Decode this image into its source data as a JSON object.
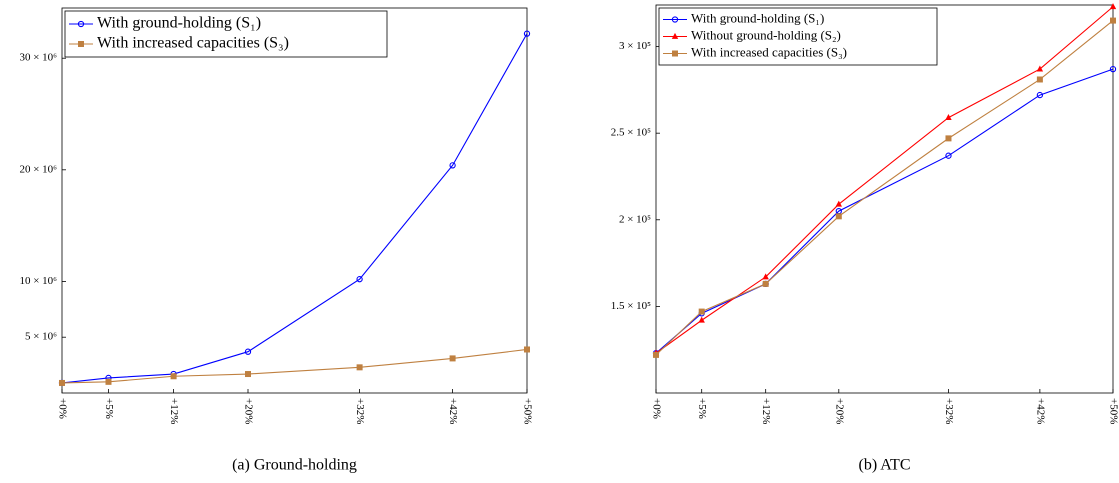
{
  "chart_data": [
    {
      "type": "line",
      "caption": "(a)  Ground-holding",
      "x": [
        0,
        5,
        12,
        20,
        32,
        42,
        50
      ],
      "xlim": [
        0,
        50
      ],
      "xticks": [
        {
          "value": 0,
          "label": "+0%"
        },
        {
          "value": 5,
          "label": "+5%"
        },
        {
          "value": 12,
          "label": "+12%"
        },
        {
          "value": 20,
          "label": "+20%"
        },
        {
          "value": 32,
          "label": "+32%"
        },
        {
          "value": 42,
          "label": "+42%"
        },
        {
          "value": 50,
          "label": "+50%"
        }
      ],
      "ylim": [
        0,
        34500000
      ],
      "yticks": [
        {
          "value": 5000000,
          "label": "5 × 10⁶"
        },
        {
          "value": 10000000,
          "label": "10 × 10⁶"
        },
        {
          "value": 20000000,
          "label": "20 × 10⁶"
        },
        {
          "value": 30000000,
          "label": "30 × 10⁶"
        }
      ],
      "legend": "upper left",
      "series": [
        {
          "name": "With ground-holding (S₁)",
          "color": "#0000ff",
          "marker": "circle",
          "values": [
            900000,
            1350000,
            1700000,
            3700000,
            10200000,
            20400000,
            32200000
          ]
        },
        {
          "name": "With increased capacities (S₃)",
          "color": "#bf8040",
          "marker": "square",
          "values": [
            900000,
            1000000,
            1500000,
            1700000,
            2300000,
            3100000,
            3900000
          ]
        }
      ]
    },
    {
      "type": "line",
      "caption": "(b)  ATC",
      "x": [
        0,
        5,
        12,
        20,
        32,
        42,
        50
      ],
      "xlim": [
        0,
        50
      ],
      "xticks": [
        {
          "value": 0,
          "label": "+0%"
        },
        {
          "value": 5,
          "label": "+5%"
        },
        {
          "value": 12,
          "label": "+12%"
        },
        {
          "value": 20,
          "label": "+20%"
        },
        {
          "value": 32,
          "label": "+32%"
        },
        {
          "value": 42,
          "label": "+42%"
        },
        {
          "value": 50,
          "label": "+50%"
        }
      ],
      "ylim": [
        100000,
        324000
      ],
      "yticks": [
        {
          "value": 150000,
          "label": "1.5 × 10⁵"
        },
        {
          "value": 200000,
          "label": "2 × 10⁵"
        },
        {
          "value": 250000,
          "label": "2.5 × 10⁵"
        },
        {
          "value": 300000,
          "label": "3 × 10⁵"
        }
      ],
      "legend": "upper left",
      "series": [
        {
          "name": "With ground-holding (S₁)",
          "color": "#0000ff",
          "marker": "circle",
          "values": [
            123000,
            146000,
            163000,
            205000,
            237000,
            272000,
            287000
          ]
        },
        {
          "name": "Without ground-holding (S₂)",
          "color": "#ff0000",
          "marker": "triangle",
          "values": [
            123000,
            142000,
            167000,
            209000,
            259000,
            287000,
            323000
          ]
        },
        {
          "name": "With increased capacities (S₃)",
          "color": "#bf8040",
          "marker": "square",
          "values": [
            122000,
            147000,
            163000,
            202000,
            247000,
            281000,
            315000
          ]
        }
      ]
    }
  ]
}
